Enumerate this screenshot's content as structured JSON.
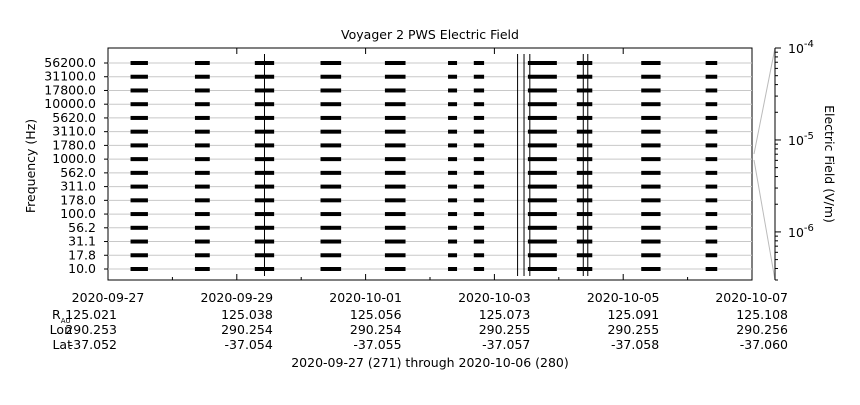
{
  "chart_data": {
    "type": "heatmap",
    "title": "Voyager 2 PWS Electric Field",
    "ylabel": "Frequency (Hz)",
    "colorbar_label": "Electric Field (V/m)",
    "colorbar_ticks": [
      {
        "base": "10",
        "exp": "-4"
      },
      {
        "base": "10",
        "exp": "-5"
      },
      {
        "base": "10",
        "exp": "-6"
      }
    ],
    "colorbar_range": [
      3e-07,
      0.0001
    ],
    "colorbar_scale": "log",
    "y_channels": [
      "10.0",
      "17.8",
      "31.1",
      "56.2",
      "100.0",
      "178.0",
      "311.0",
      "562.0",
      "1000.0",
      "1780.0",
      "3110.0",
      "5620.0",
      "10000.0",
      "17800.0",
      "31100.0",
      "56200.0"
    ],
    "y_tick_labels": [
      "10.0",
      "17.8",
      "31.1",
      "56.2",
      "100.0",
      "178.0",
      "311.0",
      "562.0",
      "1000.0",
      "1780.0",
      "3110.0",
      "5620.0",
      "10000.0",
      "17800.0",
      "31100.0",
      "56200.0"
    ],
    "x_range": [
      "2020-09-27",
      "2020-10-07"
    ],
    "x_ticks": [
      "2020-09-27",
      "2020-09-29",
      "2020-10-01",
      "2020-10-03",
      "2020-10-05",
      "2020-10-07"
    ],
    "ephemeris": {
      "r_label": "R",
      "r_sub": "AU",
      "lon_label": "Lon",
      "lat_label": "Lat",
      "r": [
        "125.021",
        "125.038",
        "125.056",
        "125.073",
        "125.091",
        "125.108"
      ],
      "lon": [
        "290.253",
        "290.254",
        "290.254",
        "290.255",
        "290.255",
        "290.256"
      ],
      "lat": [
        "-37.052",
        "-37.054",
        "-37.055",
        "-37.057",
        "-37.058",
        "-37.060"
      ]
    },
    "footer": "2020-09-27 (271) through 2020-10-06 (280)",
    "segments": [
      {
        "start": 0.35,
        "end": 0.62,
        "value": 5e-06
      },
      {
        "start": 1.35,
        "end": 1.58,
        "value": 5e-06
      },
      {
        "start": 2.28,
        "end": 2.58,
        "value": 5e-06
      },
      {
        "start": 3.3,
        "end": 3.62,
        "value": 5e-06
      },
      {
        "start": 4.3,
        "end": 4.62,
        "value": 5e-06
      },
      {
        "start": 5.28,
        "end": 5.42,
        "value": 5e-06
      },
      {
        "start": 5.68,
        "end": 5.84,
        "value": 5e-06
      },
      {
        "start": 6.52,
        "end": 6.84,
        "value": 5e-06
      },
      {
        "start": 6.84,
        "end": 6.97,
        "value": 5e-06
      },
      {
        "start": 7.28,
        "end": 7.52,
        "value": 5e-06
      },
      {
        "start": 8.28,
        "end": 8.58,
        "value": 5e-06
      },
      {
        "start": 9.28,
        "end": 9.46,
        "value": 5e-06
      }
    ],
    "spikes": [
      2.43,
      6.36,
      6.46,
      6.55,
      7.38,
      7.45
    ],
    "spike_value": 0.0001,
    "grid": true
  }
}
